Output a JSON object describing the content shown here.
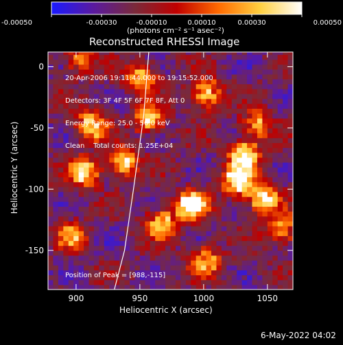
{
  "chart_data": {
    "type": "heatmap",
    "title": "Reconstructed RHESSI Image",
    "xlabel": "Heliocentric X (arcsec)",
    "ylabel": "Heliocentric Y (arcsec)",
    "xlim": [
      878,
      1070
    ],
    "ylim": [
      -182,
      12
    ],
    "xticks": [
      900,
      950,
      1000,
      1050
    ],
    "yticks": [
      0,
      -50,
      -100,
      -150
    ],
    "colorbar": {
      "range": [
        -0.0005,
        0.0005
      ],
      "tick_values": [
        -0.0005,
        -0.0003,
        -0.0001,
        0.0001,
        0.0003,
        0.0005
      ],
      "tick_labels": [
        "-0.00050",
        "-0.00030",
        "-0.00010",
        "0.00010",
        "0.00030",
        "0.00050"
      ],
      "unit_label": "(photons cm⁻² s⁻¹ asec⁻²)",
      "colors": [
        "#1a1aff",
        "#5a1aa0",
        "#7a2a3a",
        "#c00000",
        "#ff6a00",
        "#ffd040",
        "#ffffff"
      ]
    },
    "info_lines": [
      "20-Apr-2006 19:11:44.000 to 19:15:52.000",
      "Detectors: 3F 4F 5F 6F 7F 8F, Att 0",
      "Energy Range: 25.0 - 50.0 keV",
      "Clean    Total counts: 1.25E+04"
    ],
    "peak_label": "Position of Peak = [988,-115]",
    "bright_regions": [
      {
        "x": 900,
        "y": 4,
        "level": 0.55
      },
      {
        "x": 950,
        "y": -10,
        "level": 0.7
      },
      {
        "x": 1000,
        "y": -25,
        "level": 0.8
      },
      {
        "x": 910,
        "y": -50,
        "level": 0.75
      },
      {
        "x": 955,
        "y": -45,
        "level": 0.7
      },
      {
        "x": 1040,
        "y": -50,
        "level": 0.6
      },
      {
        "x": 1030,
        "y": -75,
        "level": 0.85
      },
      {
        "x": 905,
        "y": -88,
        "level": 0.8
      },
      {
        "x": 935,
        "y": -80,
        "level": 0.75
      },
      {
        "x": 988,
        "y": -115,
        "level": 1.0
      },
      {
        "x": 1025,
        "y": -95,
        "level": 0.95
      },
      {
        "x": 1045,
        "y": -110,
        "level": 0.85
      },
      {
        "x": 1060,
        "y": -135,
        "level": 0.6
      },
      {
        "x": 965,
        "y": -130,
        "level": 0.7
      },
      {
        "x": 895,
        "y": -140,
        "level": 0.5
      },
      {
        "x": 1000,
        "y": -160,
        "level": 0.55
      }
    ],
    "limb_curve": [
      [
        957,
        12
      ],
      [
        953,
        -40
      ],
      [
        945,
        -100
      ],
      [
        938,
        -150
      ],
      [
        930,
        -182
      ]
    ]
  },
  "footer": {
    "date": "6-May-2022 04:02"
  }
}
